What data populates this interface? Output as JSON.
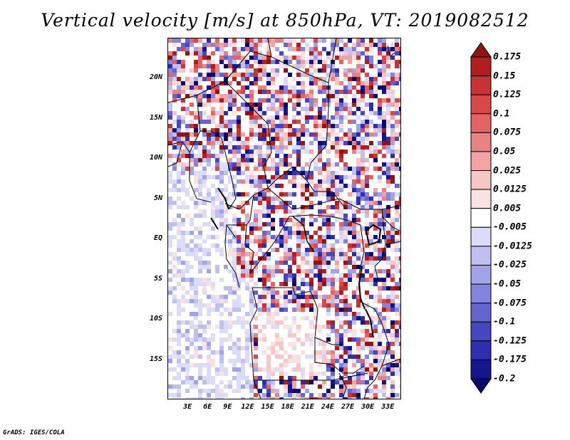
{
  "title": "Vertical velocity [m/s] at 850hPa, VT: 2019082512",
  "credit": "GrADS: IGES/COLA",
  "map": {
    "region": "Central Africa",
    "lon_range": [
      0,
      35
    ],
    "lat_range": [
      -20,
      25
    ],
    "lat_labels": [
      "20N",
      "15N",
      "10N",
      "5N",
      "EQ",
      "5S",
      "10S",
      "15S"
    ],
    "lat_values": [
      20,
      15,
      10,
      5,
      0,
      -5,
      -10,
      -15
    ],
    "lon_labels": [
      "3E",
      "6E",
      "9E",
      "12E",
      "15E",
      "18E",
      "21E",
      "24E",
      "27E",
      "30E",
      "33E"
    ],
    "lon_values": [
      3,
      6,
      9,
      12,
      15,
      18,
      21,
      24,
      27,
      30,
      33
    ]
  },
  "colorbar": {
    "labels": [
      "0.175",
      "0.15",
      "0.125",
      "0.1",
      "0.075",
      "0.05",
      "0.025",
      "0.0125",
      "0.005",
      "-0.005",
      "-0.0125",
      "-0.025",
      "-0.05",
      "-0.075",
      "-0.1",
      "-0.125",
      "-0.175",
      "-0.2"
    ],
    "colors": [
      "#8f1414",
      "#b01e1e",
      "#c83232",
      "#d84848",
      "#e26464",
      "#ea8282",
      "#f1a4a4",
      "#f7c6c6",
      "#fbe2e2",
      "#ffffff",
      "#dcdcf8",
      "#c0c0f0",
      "#a2a2e8",
      "#8484de",
      "#6464d2",
      "#4646c2",
      "#2e2eae",
      "#16168c",
      "#0a0a6e"
    ]
  },
  "colors": {
    "positive": "#c83232",
    "negative": "#4646c2",
    "border": "#000000"
  }
}
